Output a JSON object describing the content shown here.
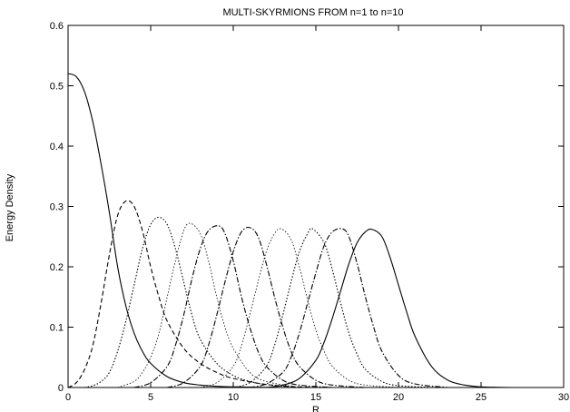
{
  "chart_data": {
    "type": "line",
    "title": "MULTI-SKYRMIONS FROM n=1 to n=10",
    "xlabel": "R",
    "ylabel": "Energy Density",
    "xlim": [
      0,
      30
    ],
    "ylim": [
      0,
      0.6
    ],
    "xticks": [
      0,
      5,
      10,
      15,
      20,
      25,
      30
    ],
    "yticks": [
      0,
      0.1,
      0.2,
      0.3,
      0.4,
      0.5,
      0.6
    ],
    "grid": false,
    "legend": "none",
    "line_color": "#000000",
    "series": [
      {
        "dash": "solid",
        "x": [
          0,
          0.5,
          1,
          1.5,
          2,
          2.5,
          3,
          3.5,
          4,
          4.5,
          5,
          6,
          7,
          8,
          9,
          10,
          12,
          14
        ],
        "y": [
          0.52,
          0.515,
          0.49,
          0.44,
          0.37,
          0.29,
          0.2,
          0.135,
          0.09,
          0.06,
          0.04,
          0.018,
          0.008,
          0.004,
          0.002,
          0.001,
          0.0003,
          0
        ]
      },
      {
        "dash": "dash",
        "x": [
          0,
          0.5,
          1,
          1.5,
          2,
          2.5,
          3,
          3.5,
          4,
          4.5,
          5,
          5.5,
          6,
          7,
          8,
          9,
          10,
          12,
          14,
          16
        ],
        "y": [
          0,
          0.008,
          0.03,
          0.07,
          0.14,
          0.22,
          0.285,
          0.309,
          0.3,
          0.26,
          0.2,
          0.15,
          0.11,
          0.065,
          0.04,
          0.025,
          0.015,
          0.005,
          0.001,
          0
        ]
      },
      {
        "dash": "dot",
        "x": [
          1,
          1.5,
          2,
          2.5,
          3,
          3.5,
          4,
          4.5,
          5,
          5.5,
          6,
          6.5,
          7,
          7.5,
          8,
          9,
          10,
          11,
          12,
          14
        ],
        "y": [
          0,
          0.003,
          0.01,
          0.025,
          0.06,
          0.11,
          0.17,
          0.23,
          0.27,
          0.282,
          0.27,
          0.23,
          0.175,
          0.12,
          0.08,
          0.04,
          0.02,
          0.01,
          0.005,
          0
        ]
      },
      {
        "dash": "dot",
        "x": [
          3,
          4,
          4.5,
          5,
          5.5,
          6,
          6.5,
          7,
          7.4,
          8,
          8.5,
          9,
          9.5,
          10,
          11,
          12,
          14
        ],
        "y": [
          0,
          0.01,
          0.025,
          0.05,
          0.09,
          0.15,
          0.21,
          0.26,
          0.272,
          0.255,
          0.21,
          0.15,
          0.1,
          0.065,
          0.025,
          0.01,
          0
        ],
        "fine": true
      },
      {
        "dash": "dashdot",
        "x": [
          4,
          5,
          6,
          6.5,
          7,
          7.5,
          8,
          8.5,
          9.1,
          9.5,
          10,
          10.5,
          11,
          11.5,
          12,
          13,
          14,
          16
        ],
        "y": [
          0,
          0.008,
          0.035,
          0.07,
          0.12,
          0.18,
          0.23,
          0.26,
          0.268,
          0.255,
          0.21,
          0.15,
          0.1,
          0.06,
          0.035,
          0.012,
          0.004,
          0
        ]
      },
      {
        "dash": "dashdot",
        "x": [
          6,
          7,
          8,
          8.5,
          9,
          9.5,
          10,
          10.5,
          11,
          11.5,
          12,
          12.5,
          13,
          13.5,
          14,
          15,
          16,
          18
        ],
        "y": [
          0,
          0.008,
          0.035,
          0.07,
          0.12,
          0.175,
          0.225,
          0.258,
          0.265,
          0.25,
          0.205,
          0.15,
          0.1,
          0.06,
          0.035,
          0.012,
          0.004,
          0
        ]
      },
      {
        "dash": "dot",
        "x": [
          8,
          9,
          10,
          10.5,
          11,
          11.5,
          12,
          12.5,
          12.9,
          13.5,
          14,
          14.5,
          15,
          15.5,
          16,
          17,
          18,
          20
        ],
        "y": [
          0,
          0.008,
          0.035,
          0.07,
          0.12,
          0.175,
          0.225,
          0.255,
          0.263,
          0.245,
          0.2,
          0.145,
          0.095,
          0.06,
          0.035,
          0.012,
          0.004,
          0
        ],
        "fine": true
      },
      {
        "dash": "dot",
        "x": [
          10,
          11,
          12,
          12.5,
          13,
          13.5,
          14,
          14.5,
          14.8,
          15.5,
          16,
          16.5,
          17,
          17.5,
          18,
          19,
          20,
          22
        ],
        "y": [
          0,
          0.008,
          0.035,
          0.07,
          0.12,
          0.175,
          0.225,
          0.255,
          0.263,
          0.24,
          0.195,
          0.14,
          0.09,
          0.055,
          0.03,
          0.01,
          0.003,
          0
        ]
      },
      {
        "dash": "dashdot",
        "x": [
          11,
          12,
          13,
          13.5,
          14,
          14.5,
          15,
          15.5,
          16,
          16.6,
          17,
          17.5,
          18,
          18.5,
          19,
          20,
          21,
          23
        ],
        "y": [
          0,
          0.006,
          0.025,
          0.05,
          0.09,
          0.14,
          0.19,
          0.235,
          0.258,
          0.263,
          0.25,
          0.205,
          0.15,
          0.1,
          0.06,
          0.02,
          0.006,
          0
        ]
      },
      {
        "dash": "solid",
        "x": [
          12,
          13,
          14,
          15,
          15.5,
          16,
          16.5,
          17,
          17.5,
          18,
          18.4,
          19,
          19.5,
          20,
          20.5,
          21,
          22,
          23,
          24,
          25,
          26,
          27
        ],
        "y": [
          0,
          0.004,
          0.015,
          0.045,
          0.075,
          0.115,
          0.16,
          0.205,
          0.24,
          0.258,
          0.262,
          0.25,
          0.215,
          0.17,
          0.125,
          0.085,
          0.035,
          0.012,
          0.004,
          0.001,
          0.0003,
          0
        ]
      }
    ]
  }
}
